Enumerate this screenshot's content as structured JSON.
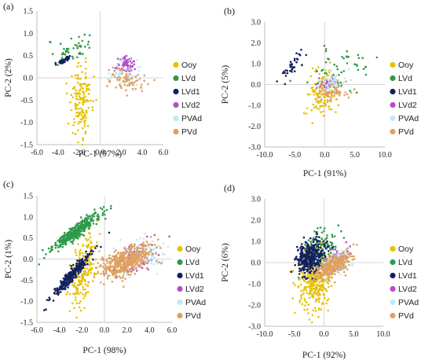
{
  "chart_data": [
    {
      "type": "scatter",
      "panel_label": "(a)",
      "xlabel": "PC-1 (97%)",
      "ylabel": "PC-2 (2%)",
      "xlim": [
        -6,
        6
      ],
      "ylim": [
        -1.5,
        1.5
      ],
      "xticks": [
        "-6.0",
        "-4.0",
        "-2.0",
        "0.0",
        "2.0",
        "4.0",
        "6.0"
      ],
      "xtick_values": [
        -6,
        -4,
        -2,
        0,
        2,
        4,
        6
      ],
      "yticks": [
        "-1.5",
        "-1.0",
        "-0.5",
        "0.0",
        "0.5",
        "1.0",
        "1.5"
      ],
      "ytick_values": [
        -1.5,
        -1.0,
        -0.5,
        0,
        0.5,
        1.0,
        1.5
      ],
      "series": [
        {
          "name": "Ooy",
          "color": "#E6C200",
          "n": 150,
          "cx": -1.8,
          "cy": -0.5,
          "sx": 0.55,
          "sy": 0.4,
          "rho": 0.1
        },
        {
          "name": "LVd",
          "color": "#2E9A4A",
          "n": 45,
          "cx": -2.6,
          "cy": 0.65,
          "sx": 1.1,
          "sy": 0.18,
          "rho": 0.3
        },
        {
          "name": "LVd1",
          "color": "#15205E",
          "n": 35,
          "cx": -3.4,
          "cy": 0.4,
          "sx": 0.35,
          "sy": 0.05,
          "rho": 0.8
        },
        {
          "name": "LVd2",
          "color": "#B84CC8",
          "n": 60,
          "cx": 2.4,
          "cy": 0.3,
          "sx": 0.45,
          "sy": 0.1,
          "rho": 0.2
        },
        {
          "name": "PVAd",
          "color": "#BDEBF5",
          "n": 50,
          "cx": 2.2,
          "cy": 0.1,
          "sx": 0.8,
          "sy": 0.15,
          "rho": 0.1
        },
        {
          "name": "PVd",
          "color": "#E0A060",
          "n": 70,
          "cx": 2.6,
          "cy": -0.05,
          "sx": 0.8,
          "sy": 0.12,
          "rho": -0.2
        }
      ]
    },
    {
      "type": "scatter",
      "panel_label": "(b)",
      "xlabel": "PC-1 (91%)",
      "ylabel": "PC-2 (5%)",
      "xlim": [
        -10,
        10
      ],
      "ylim": [
        -3,
        3
      ],
      "xticks": [
        "-10.0",
        "-5.0",
        "0.0",
        "5.0",
        "10.0"
      ],
      "xtick_values": [
        -10,
        -5,
        0,
        5,
        10
      ],
      "yticks": [
        "-3.0",
        "-2.0",
        "-1.0",
        "0.0",
        "1.0",
        "2.0",
        "3.0"
      ],
      "ytick_values": [
        -3,
        -2,
        -1,
        0,
        1,
        2,
        3
      ],
      "series": [
        {
          "name": "Ooy",
          "color": "#E6C200",
          "n": 120,
          "cx": -0.5,
          "cy": -0.5,
          "sx": 1.2,
          "sy": 0.6,
          "rho": 0.1
        },
        {
          "name": "LVd",
          "color": "#2E9A4A",
          "n": 50,
          "cx": 1.5,
          "cy": 0.7,
          "sx": 2.8,
          "sy": 0.6,
          "rho": 0.1
        },
        {
          "name": "LVd1",
          "color": "#15205E",
          "n": 35,
          "cx": -5.5,
          "cy": 0.9,
          "sx": 0.9,
          "sy": 0.3,
          "rho": 0.8
        },
        {
          "name": "LVd2",
          "color": "#B84CC8",
          "n": 40,
          "cx": 0.6,
          "cy": 0.1,
          "sx": 0.9,
          "sy": 0.2,
          "rho": 0.1
        },
        {
          "name": "PVAd",
          "color": "#BDEBF5",
          "n": 60,
          "cx": 1.2,
          "cy": 0.1,
          "sx": 1.2,
          "sy": 0.3,
          "rho": 0.0
        },
        {
          "name": "PVd",
          "color": "#E0A060",
          "n": 70,
          "cx": 1.2,
          "cy": -0.4,
          "sx": 1.3,
          "sy": 0.2,
          "rho": 0.1
        }
      ]
    },
    {
      "type": "scatter",
      "panel_label": "(c)",
      "xlabel": "PC-1 (98%)",
      "ylabel": "PC-2 (1%)",
      "xlim": [
        -6,
        6
      ],
      "ylim": [
        -1.5,
        1.5
      ],
      "xticks": [
        "-6.0",
        "-4.0",
        "-2.0",
        "0.0",
        "2.0",
        "4.0",
        "6.0"
      ],
      "xtick_values": [
        -6,
        -4,
        -2,
        0,
        2,
        4,
        6
      ],
      "yticks": [
        "-1.5",
        "-1.0",
        "-0.5",
        "0.0",
        "0.5",
        "1.0",
        "1.5"
      ],
      "ytick_values": [
        -1.5,
        -1.0,
        -0.5,
        0,
        0.5,
        1.0,
        1.5
      ],
      "series": [
        {
          "name": "Ooy",
          "color": "#E6C200",
          "n": 200,
          "cx": -1.9,
          "cy": -0.3,
          "sx": 0.6,
          "sy": 0.45,
          "rho": 0.5
        },
        {
          "name": "LVd",
          "color": "#2E9A4A",
          "n": 350,
          "cx": -2.5,
          "cy": 0.65,
          "sx": 1.1,
          "sy": 0.23,
          "rho": 0.93
        },
        {
          "name": "LVd1",
          "color": "#15205E",
          "n": 300,
          "cx": -2.8,
          "cy": -0.35,
          "sx": 0.8,
          "sy": 0.25,
          "rho": 0.95
        },
        {
          "name": "LVd2",
          "color": "#B84CC8",
          "n": 80,
          "cx": 2.6,
          "cy": 0.05,
          "sx": 1.0,
          "sy": 0.2,
          "rho": 0.5
        },
        {
          "name": "PVAd",
          "color": "#BDEBF5",
          "n": 120,
          "cx": 3.5,
          "cy": 0.12,
          "sx": 1.0,
          "sy": 0.18,
          "rho": 0.3
        },
        {
          "name": "PVd",
          "color": "#E0A060",
          "n": 450,
          "cx": 2.0,
          "cy": -0.05,
          "sx": 1.2,
          "sy": 0.2,
          "rho": 0.55
        }
      ]
    },
    {
      "type": "scatter",
      "panel_label": "(d)",
      "xlabel": "PC-1 (92%)",
      "ylabel": "PC-2 (6%)",
      "xlim": [
        -10,
        10
      ],
      "ylim": [
        -3,
        3
      ],
      "xticks": [
        "-10.0",
        "-5.0",
        "0.0",
        "5.0",
        "10.0"
      ],
      "xtick_values": [
        -10,
        -5,
        0,
        5,
        10
      ],
      "yticks": [
        "-3.0",
        "-2.0",
        "-1.0",
        "0.0",
        "1.0",
        "2.0",
        "3.0"
      ],
      "ytick_values": [
        -3,
        -2,
        -1,
        0,
        1,
        2,
        3
      ],
      "series": [
        {
          "name": "Ooy",
          "color": "#E6C200",
          "n": 300,
          "cx": -1.5,
          "cy": -0.8,
          "sx": 1.3,
          "sy": 0.7,
          "rho": 0.1
        },
        {
          "name": "LVd",
          "color": "#2E9A4A",
          "n": 150,
          "cx": -0.8,
          "cy": 0.6,
          "sx": 1.5,
          "sy": 0.45,
          "rho": 0.4
        },
        {
          "name": "LVd1",
          "color": "#15205E",
          "n": 350,
          "cx": -2.4,
          "cy": 0.25,
          "sx": 1.2,
          "sy": 0.4,
          "rho": 0.2
        },
        {
          "name": "LVd2",
          "color": "#B84CC8",
          "n": 60,
          "cx": 2.5,
          "cy": 0.15,
          "sx": 1.0,
          "sy": 0.25,
          "rho": 0.5
        },
        {
          "name": "PVAd",
          "color": "#BDEBF5",
          "n": 100,
          "cx": 2.5,
          "cy": 0.0,
          "sx": 1.2,
          "sy": 0.3,
          "rho": 0.3
        },
        {
          "name": "PVd",
          "color": "#E0A060",
          "n": 300,
          "cx": 1.5,
          "cy": -0.15,
          "sx": 1.5,
          "sy": 0.3,
          "rho": 0.65
        }
      ]
    }
  ]
}
